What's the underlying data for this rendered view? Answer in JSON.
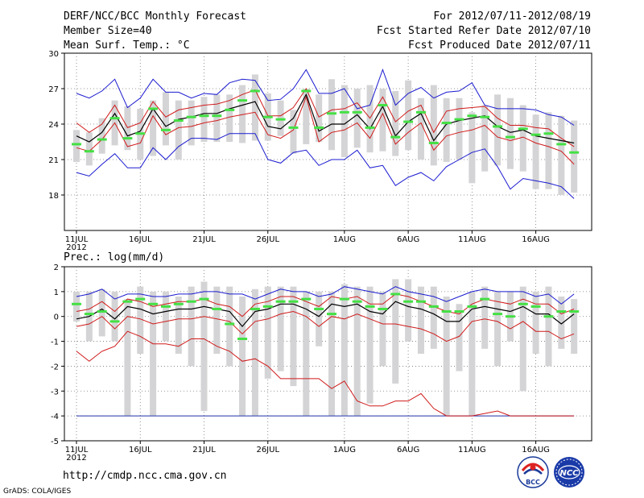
{
  "header": {
    "title": "DERF/NCC/BCC Monthly Forecast",
    "member_size": "Member Size=40",
    "period": "For 2012/07/11-2012/08/19",
    "fcst_started": "Fcst Started Refer Date 2012/07/10",
    "fcst_produced": "Fcst Produced Date 2012/07/11"
  },
  "footer": {
    "url": "http://cmdp.ncc.cma.gov.cn",
    "credit": "GrADS: COLA/IGES",
    "logo_bcc": "BCC",
    "logo_ncc": "NCC"
  },
  "chart_data": [
    {
      "type": "box",
      "title": "Mean Surf. Temp.: °C",
      "ylim": [
        15,
        30
      ],
      "yticks": [
        "18",
        "21",
        "24",
        "27",
        "30"
      ],
      "xticks": [
        "11JUL",
        "16JUL",
        "21JUL",
        "26JUL",
        "1AUG",
        "6AUG",
        "11AUG",
        "16AUG"
      ],
      "xtick_days": [
        0,
        5,
        10,
        15,
        21,
        26,
        31,
        36
      ],
      "year_label": "2012",
      "days": 40,
      "box_low": [
        20.8,
        20.5,
        21.5,
        22.2,
        21.8,
        21.0,
        21.3,
        22.2,
        21.0,
        22.2,
        22.5,
        22.5,
        22.5,
        22.4,
        22.6,
        22.6,
        23.0,
        21.5,
        22.3,
        22.5,
        21.8,
        21.2,
        22.0,
        21.6,
        21.7,
        21.3,
        21.8,
        21.0,
        20.5,
        20.8,
        21.0,
        19.0,
        20.0,
        20.5,
        20.2,
        20.0,
        18.5,
        18.5,
        18.0,
        18.2
      ],
      "box_high": [
        23.5,
        23.3,
        24.5,
        26.0,
        25.5,
        25.3,
        26.0,
        26.7,
        26.0,
        26.0,
        26.3,
        26.5,
        26.5,
        27.3,
        28.2,
        26.6,
        26.0,
        25.2,
        27.0,
        26.5,
        27.8,
        27.3,
        27.0,
        27.3,
        27.0,
        26.8,
        27.7,
        26.2,
        27.3,
        26.2,
        26.2,
        25.0,
        25.6,
        26.5,
        26.2,
        25.6,
        24.8,
        25.0,
        24.7,
        24.3
      ],
      "median": [
        22.3,
        21.7,
        22.7,
        24.5,
        22.8,
        23.2,
        25.3,
        23.5,
        24.3,
        24.6,
        24.7,
        24.7,
        25.2,
        26.0,
        26.8,
        24.6,
        24.4,
        23.7,
        26.8,
        23.7,
        24.9,
        25.0,
        25.0,
        23.7,
        25.6,
        22.9,
        24.2,
        25.0,
        22.4,
        24.1,
        24.4,
        24.7,
        24.6,
        23.8,
        22.9,
        23.6,
        23.1,
        23.2,
        22.3,
        21.6
      ],
      "ensemble_mean": [
        23.0,
        22.5,
        23.3,
        24.9,
        23.0,
        23.4,
        25.3,
        23.8,
        24.4,
        24.6,
        24.9,
        24.9,
        25.3,
        25.6,
        25.9,
        23.8,
        23.6,
        24.5,
        26.5,
        23.4,
        24.0,
        24.0,
        24.8,
        23.6,
        25.5,
        23.0,
        24.2,
        24.9,
        22.6,
        24.0,
        24.3,
        24.5,
        24.7,
        23.8,
        23.3,
        23.5,
        23.0,
        22.8,
        22.6,
        22.4
      ],
      "spread_upper": [
        24.1,
        23.3,
        24.0,
        25.6,
        23.7,
        24.1,
        25.9,
        24.6,
        25.2,
        25.4,
        25.6,
        25.7,
        26.0,
        26.5,
        26.9,
        24.7,
        24.7,
        25.4,
        27.0,
        24.6,
        25.2,
        25.3,
        25.8,
        24.5,
        26.3,
        24.2,
        25.1,
        25.6,
        23.3,
        25.1,
        25.3,
        25.4,
        25.5,
        24.5,
        23.9,
        23.9,
        23.7,
        23.6,
        22.8,
        22.1
      ],
      "spread_lower": [
        22.0,
        21.7,
        22.7,
        24.1,
        22.1,
        22.4,
        24.7,
        23.1,
        23.7,
        23.8,
        24.1,
        24.3,
        24.6,
        24.8,
        25.0,
        23.1,
        22.8,
        23.5,
        26.3,
        22.5,
        23.3,
        23.5,
        24.1,
        22.8,
        24.9,
        22.3,
        23.3,
        24.1,
        21.8,
        23.0,
        23.3,
        23.5,
        23.9,
        22.9,
        22.6,
        22.9,
        22.4,
        22.1,
        21.7,
        20.6
      ],
      "member_max": [
        26.6,
        26.2,
        26.8,
        27.8,
        25.4,
        26.2,
        27.8,
        26.7,
        26.7,
        26.2,
        26.6,
        26.5,
        27.5,
        27.8,
        27.7,
        26.0,
        26.1,
        27.0,
        28.6,
        26.6,
        26.6,
        27.0,
        25.3,
        25.6,
        28.6,
        25.6,
        26.6,
        27.1,
        26.2,
        26.7,
        26.8,
        27.5,
        25.6,
        25.3,
        25.3,
        25.3,
        25.2,
        24.8,
        24.6,
        23.9
      ],
      "member_min": [
        19.9,
        19.6,
        20.6,
        21.5,
        20.3,
        20.3,
        22.0,
        21.0,
        22.1,
        22.8,
        22.8,
        22.7,
        23.2,
        23.2,
        23.2,
        21.0,
        20.7,
        21.6,
        21.8,
        20.5,
        21.0,
        21.0,
        21.8,
        20.3,
        20.5,
        18.8,
        19.5,
        19.9,
        19.2,
        20.4,
        21.0,
        21.6,
        21.9,
        20.4,
        18.5,
        19.4,
        19.2,
        19.0,
        18.7,
        17.7
      ]
    },
    {
      "type": "box",
      "title": "Prec.: log(mm/d)",
      "ylim": [
        -5,
        2
      ],
      "yticks": [
        "-5",
        "-4",
        "-3",
        "-2",
        "-1",
        "0",
        "1",
        "2"
      ],
      "xticks": [
        "11JUL",
        "16JUL",
        "21JUL",
        "26JUL",
        "1AUG",
        "6AUG",
        "11AUG",
        "16AUG"
      ],
      "xtick_days": [
        0,
        5,
        10,
        15,
        21,
        26,
        31,
        36
      ],
      "year_label": "2012",
      "days": 40,
      "box_low": [
        -0.2,
        -1.0,
        -0.8,
        -1.0,
        -4.0,
        -1.5,
        -4.0,
        -1.0,
        -1.5,
        -2.0,
        -3.8,
        -1.5,
        -2.0,
        -4.0,
        -4.0,
        -2.5,
        -2.2,
        -2.8,
        -4.0,
        -1.2,
        -4.0,
        -4.0,
        -4.0,
        -3.5,
        -2.0,
        -2.7,
        -1.0,
        -1.5,
        -1.3,
        -4.0,
        -2.2,
        -4.0,
        -1.3,
        -2.0,
        -1.0,
        -3.0,
        -1.5,
        -2.0,
        -1.3,
        -1.5
      ],
      "box_high": [
        1.0,
        1.0,
        1.1,
        1.0,
        0.7,
        1.2,
        1.0,
        1.0,
        0.8,
        1.2,
        1.4,
        1.2,
        1.2,
        0.8,
        1.1,
        1.2,
        1.2,
        1.2,
        1.0,
        1.0,
        1.0,
        1.3,
        1.2,
        1.2,
        1.0,
        1.5,
        1.5,
        1.2,
        1.2,
        0.8,
        0.5,
        1.0,
        1.2,
        1.0,
        1.0,
        1.2,
        1.0,
        1.2,
        0.8,
        0.7
      ],
      "median": [
        0.5,
        0.1,
        0.2,
        -0.2,
        0.6,
        0.7,
        0.5,
        0.4,
        0.5,
        0.6,
        0.7,
        0.3,
        -0.3,
        -0.9,
        0.3,
        0.4,
        0.6,
        0.6,
        0.7,
        0.3,
        0.1,
        0.7,
        0.6,
        0.4,
        0.3,
        0.9,
        0.6,
        0.6,
        0.4,
        0.2,
        0.2,
        0.4,
        0.7,
        0.1,
        0.0,
        0.5,
        0.4,
        0.0,
        0.2,
        0.2
      ],
      "ensemble_mean": [
        -0.1,
        0.0,
        0.3,
        -0.1,
        0.4,
        0.3,
        0.1,
        0.2,
        0.3,
        0.3,
        0.4,
        0.3,
        0.2,
        -0.4,
        0.2,
        0.3,
        0.5,
        0.5,
        0.3,
        0.0,
        0.5,
        0.4,
        0.5,
        0.2,
        0.1,
        0.6,
        0.4,
        0.3,
        0.1,
        -0.2,
        -0.2,
        0.3,
        0.4,
        0.3,
        0.2,
        0.4,
        0.1,
        0.1,
        -0.3,
        0.1
      ],
      "spread_upper": [
        0.2,
        0.3,
        0.6,
        0.2,
        0.7,
        0.6,
        0.4,
        0.5,
        0.6,
        0.6,
        0.7,
        0.5,
        0.4,
        0.0,
        0.5,
        0.6,
        0.8,
        0.8,
        0.6,
        0.4,
        0.8,
        0.7,
        0.8,
        0.5,
        0.5,
        0.9,
        0.8,
        0.6,
        0.4,
        0.2,
        0.1,
        0.5,
        0.7,
        0.6,
        0.5,
        0.7,
        0.5,
        0.5,
        0.1,
        0.3
      ],
      "spread_lower": [
        -0.4,
        -0.3,
        0.0,
        -0.5,
        0.0,
        -0.1,
        -0.3,
        -0.2,
        -0.1,
        -0.1,
        0.0,
        -0.1,
        -0.2,
        -0.7,
        -0.2,
        -0.1,
        0.1,
        0.2,
        0.0,
        -0.4,
        0.0,
        -0.1,
        0.1,
        -0.1,
        -0.3,
        -0.3,
        -0.4,
        -0.5,
        -0.7,
        -1.0,
        -0.8,
        -0.2,
        -0.1,
        -0.2,
        -0.5,
        -0.2,
        -0.6,
        -0.6,
        -0.9,
        -0.7
      ],
      "member_max": [
        0.8,
        0.9,
        1.1,
        0.7,
        0.9,
        0.9,
        0.8,
        0.8,
        0.9,
        0.9,
        1.0,
        1.0,
        0.9,
        0.9,
        0.7,
        0.9,
        1.1,
        1.0,
        1.0,
        0.8,
        0.9,
        1.2,
        1.1,
        1.0,
        0.9,
        1.2,
        1.0,
        0.9,
        0.8,
        0.6,
        0.8,
        1.0,
        1.1,
        1.0,
        1.0,
        1.0,
        0.8,
        0.9,
        0.5,
        0.9
      ],
      "member_min": [
        -1.4,
        -1.8,
        -1.4,
        -1.2,
        -0.6,
        -0.8,
        -1.1,
        -1.1,
        -1.2,
        -0.9,
        -0.9,
        -1.2,
        -1.4,
        -1.8,
        -1.7,
        -2.0,
        -2.5,
        -2.5,
        -2.5,
        -2.5,
        -2.9,
        -2.6,
        -3.4,
        -3.6,
        -3.6,
        -3.4,
        -3.4,
        -3.1,
        -3.7,
        -4.0,
        -4.0,
        -4.0,
        -3.9,
        -3.8,
        -4.0,
        -4.0,
        -4.0,
        -4.0,
        -4.0,
        -4.0
      ],
      "floor_line": -4.0
    }
  ]
}
